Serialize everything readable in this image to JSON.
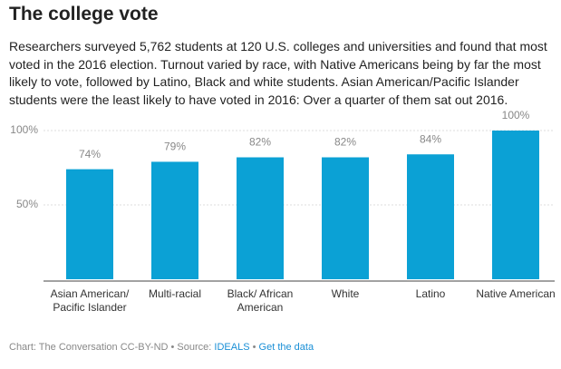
{
  "chart_data": {
    "type": "bar",
    "title": "The college vote",
    "subtitle": "Researchers surveyed 5,762 students at 120 U.S. colleges and universities and found that most voted in the 2016 election. Turnout varied by race, with Native Americans being by far the most likely to vote, followed by Latino, Black and white students. Asian American/Pacific Islander students were the least likely to have voted in 2016: Over a quarter of them sat out 2016.",
    "categories": [
      "Asian American/ Pacific Islander",
      "Multi-racial",
      "Black/ African American",
      "White",
      "Latino",
      "Native American"
    ],
    "values": [
      74,
      79,
      82,
      82,
      84,
      100
    ],
    "value_labels": [
      "74%",
      "79%",
      "82%",
      "82%",
      "84%",
      "100%"
    ],
    "color": "#0ba1d5",
    "ylim": [
      0,
      100
    ],
    "yticks": [
      {
        "value": 50,
        "label": "50%"
      },
      {
        "value": 100,
        "label": "100%"
      }
    ],
    "grid": true,
    "footer": {
      "credit": "Chart: The Conversation CC-BY-ND • Source:",
      "source": "IDEALS",
      "separator": "•",
      "link": "Get the data"
    }
  }
}
